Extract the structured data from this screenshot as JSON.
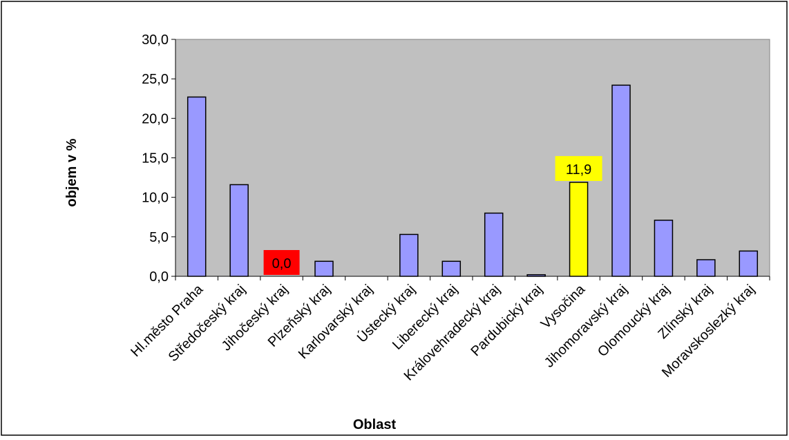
{
  "chart_data": {
    "type": "bar",
    "title": "",
    "xlabel": "Oblast",
    "ylabel": "objem v %",
    "ylim": [
      0,
      30
    ],
    "yticks": [
      "0,0",
      "5,0",
      "10,0",
      "15,0",
      "20,0",
      "25,0",
      "30,0"
    ],
    "ytick_values": [
      0,
      5,
      10,
      15,
      20,
      25,
      30
    ],
    "grid": false,
    "legend": "none",
    "categories": [
      "Hl.město Praha",
      "Středočeský kraj",
      "Jihočeský kraj",
      "Plzeňský kraj",
      "Karlovarský kraj",
      "Ústecký kraj",
      "Liberecký kraj",
      "Královehradecký kraj",
      "Pardubický kraj",
      "Vysočina",
      "Jihomoravský kraj",
      "Olomoucký kraj",
      "Zlínský kraj",
      "Moravskoslezký kraj"
    ],
    "values": [
      22.7,
      11.6,
      0.0,
      1.9,
      0.0,
      5.3,
      1.9,
      8.0,
      0.2,
      11.9,
      24.2,
      7.1,
      2.1,
      3.2
    ],
    "highlighted": [
      2,
      9
    ],
    "data_labels": [
      {
        "index": 2,
        "text": "0,0",
        "background": "#ff0000"
      },
      {
        "index": 9,
        "text": "11,9",
        "background": "#ffff00"
      }
    ],
    "colors": {
      "plot_background": "#c0c0c0",
      "bar_default": "#9999ff",
      "bar_highlight": "#ffff00",
      "bar_stroke": "#000000"
    }
  }
}
